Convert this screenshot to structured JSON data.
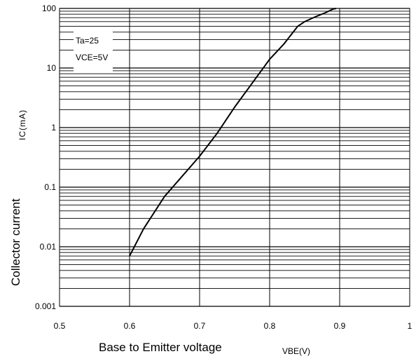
{
  "chart_data": {
    "type": "line",
    "x_label": "Base to Emitter voltage",
    "x_unit_label": "VBE(V)",
    "y_label": "Collector current",
    "y_unit_label": "IC(mA)",
    "xlim": [
      0.5,
      1.0
    ],
    "x_ticks": [
      0.5,
      0.6,
      0.7,
      0.8,
      0.9,
      1.0
    ],
    "x_tick_labels": [
      "0.5",
      "0.6",
      "0.7",
      "0.8",
      "0.9",
      "1"
    ],
    "ylim": [
      0.001,
      100
    ],
    "y_scale": "log",
    "y_ticks": [
      0.001,
      0.01,
      0.1,
      1,
      10,
      100
    ],
    "y_tick_labels": [
      "0.001",
      "0.01",
      "0.1",
      "1",
      "10",
      "100"
    ],
    "grid": true,
    "annotations": [
      "Ta=25",
      "VCE=5V"
    ],
    "series": [
      {
        "x": [
          0.6,
          0.62,
          0.65,
          0.7,
          0.725,
          0.75,
          0.8,
          0.82,
          0.84,
          0.85,
          0.865,
          0.88,
          0.89,
          0.895
        ],
        "y": [
          0.007,
          0.02,
          0.07,
          0.33,
          0.8,
          2.2,
          14,
          25,
          50,
          60,
          72,
          85,
          97,
          100
        ]
      }
    ]
  }
}
